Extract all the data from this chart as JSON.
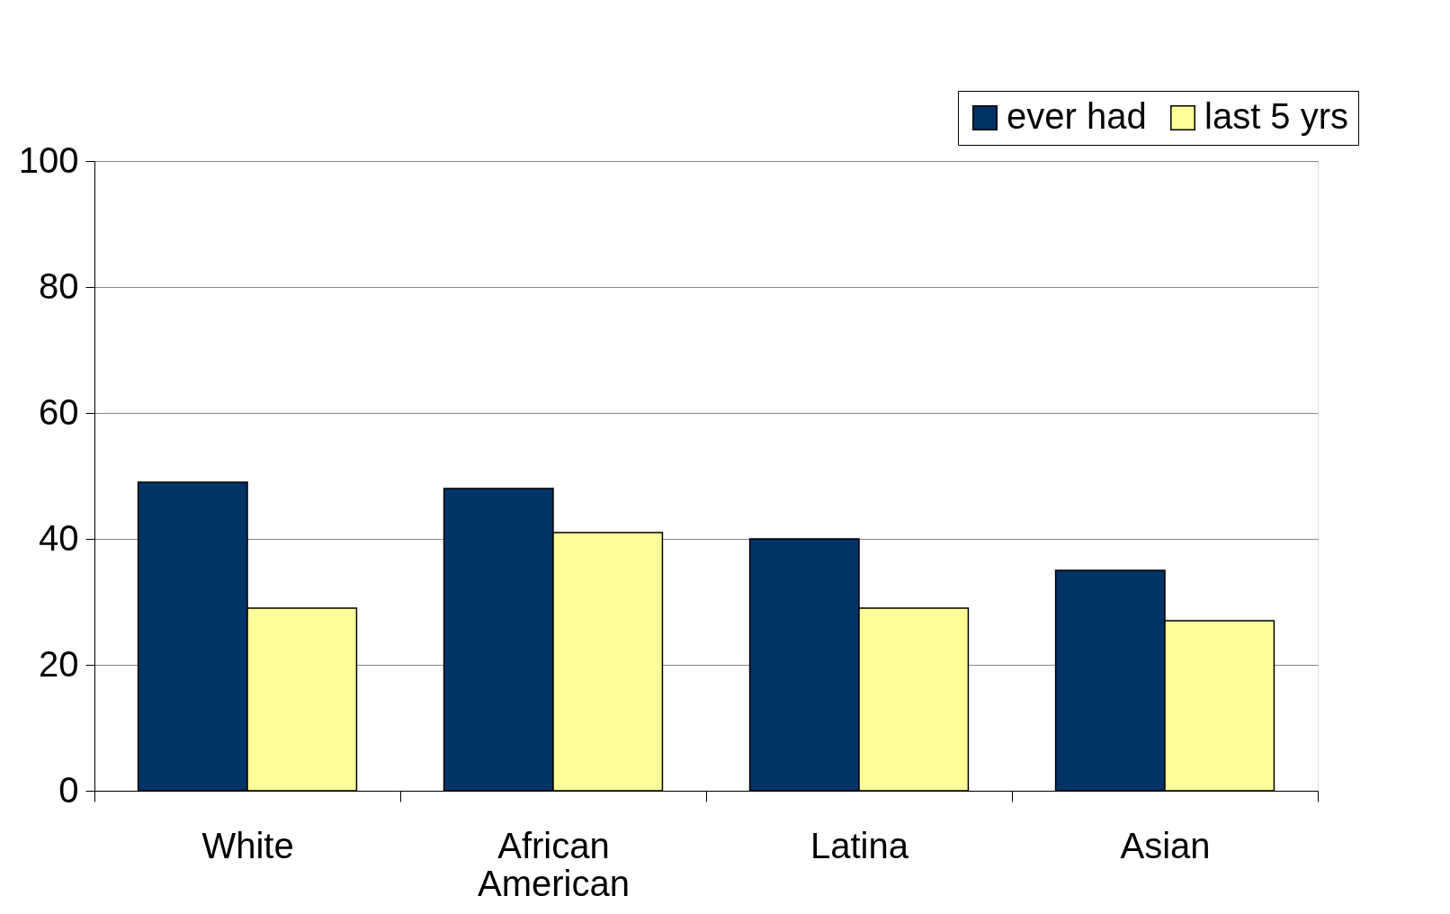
{
  "chart_data": {
    "type": "bar",
    "categories": [
      "White",
      "African American",
      "Latina",
      "Asian"
    ],
    "series": [
      {
        "name": "ever had",
        "color": "#003366",
        "values": [
          49,
          48,
          40,
          35
        ]
      },
      {
        "name": "last 5 yrs",
        "color": "#ffff99",
        "values": [
          29,
          41,
          29,
          27
        ]
      }
    ],
    "ylim": [
      0,
      100
    ],
    "yticks": [
      0,
      20,
      40,
      60,
      80,
      100
    ],
    "grid": "y",
    "legend": "top right"
  }
}
